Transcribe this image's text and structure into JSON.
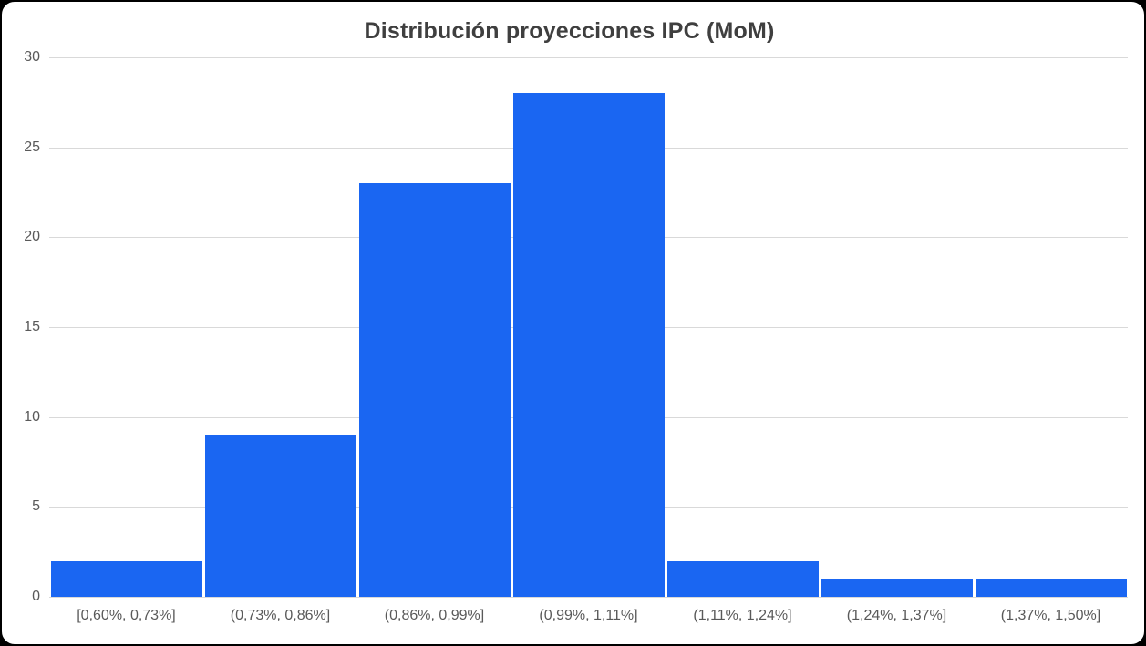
{
  "chart": {
    "title": "Distribución proyecciones IPC (MoM)"
  },
  "chart_data": {
    "type": "bar",
    "subtype": "histogram",
    "title": "Distribución proyecciones IPC (MoM)",
    "categories": [
      "[0,60%, 0,73%]",
      "(0,73%, 0,86%]",
      "(0,86%, 0,99%]",
      "(0,99%, 1,11%]",
      "(1,11%, 1,24%]",
      "(1,24%, 1,37%]",
      "(1,37%, 1,50%]"
    ],
    "values": [
      2,
      9,
      23,
      28,
      2,
      1,
      1
    ],
    "xlabel": "",
    "ylabel": "",
    "ylim": [
      0,
      30
    ],
    "yticks": [
      0,
      5,
      10,
      15,
      20,
      25,
      30
    ],
    "grid": "horizontal",
    "legend": "none",
    "colors": {
      "bar": "#1A66F2",
      "gridline": "#D9D9D9",
      "tick_label": "#595959",
      "title": "#3F3F3F",
      "background": "#FFFFFF"
    }
  }
}
